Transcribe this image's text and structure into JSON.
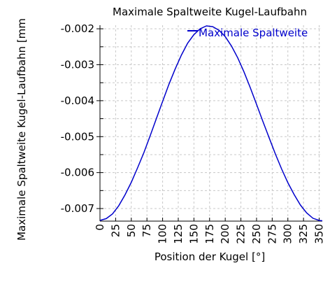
{
  "chart_data": {
    "type": "line",
    "title": "Maximale Spaltweite Kugel-Laufbahn",
    "xlabel": "Position der Kugel [°]",
    "ylabel": "Maximale Spaltweite Kugel-Laufbahn [mm",
    "xlim": [
      0,
      355
    ],
    "ylim": [
      -0.00735,
      -0.0019
    ],
    "x_ticks": [
      "0",
      "25",
      "50",
      "75",
      "100",
      "125",
      "150",
      "175",
      "200",
      "225",
      "250",
      "275",
      "300",
      "325",
      "350"
    ],
    "x_tick_values": [
      0,
      25,
      50,
      75,
      100,
      125,
      150,
      175,
      200,
      225,
      250,
      275,
      300,
      325,
      350
    ],
    "y_ticks": [
      "-0.002",
      "-0.003",
      "-0.004",
      "-0.005",
      "-0.006",
      "-0.007"
    ],
    "y_tick_values": [
      -0.002,
      -0.003,
      -0.004,
      -0.005,
      -0.006,
      -0.007
    ],
    "y_minor_step": 0.0005,
    "grid": true,
    "legend_position": "top-right",
    "series": [
      {
        "name": "Maximale Spaltweite",
        "color": "#0000cc",
        "x": [
          0,
          10,
          20,
          30,
          40,
          50,
          60,
          70,
          80,
          90,
          100,
          110,
          120,
          130,
          140,
          150,
          160,
          170,
          180,
          190,
          200,
          210,
          220,
          230,
          240,
          250,
          260,
          270,
          280,
          290,
          300,
          310,
          320,
          330,
          340,
          350,
          355
        ],
        "y": [
          -0.00733,
          -0.00728,
          -0.00715,
          -0.00692,
          -0.00662,
          -0.00627,
          -0.00587,
          -0.00545,
          -0.00498,
          -0.0045,
          -0.00402,
          -0.00355,
          -0.00312,
          -0.00273,
          -0.0024,
          -0.00216,
          -0.002,
          -0.00192,
          -0.00194,
          -0.00204,
          -0.00222,
          -0.00248,
          -0.00281,
          -0.0032,
          -0.00364,
          -0.0041,
          -0.00457,
          -0.00503,
          -0.00548,
          -0.0059,
          -0.00628,
          -0.00661,
          -0.0069,
          -0.00712,
          -0.00727,
          -0.00733,
          -0.00734
        ]
      }
    ]
  }
}
